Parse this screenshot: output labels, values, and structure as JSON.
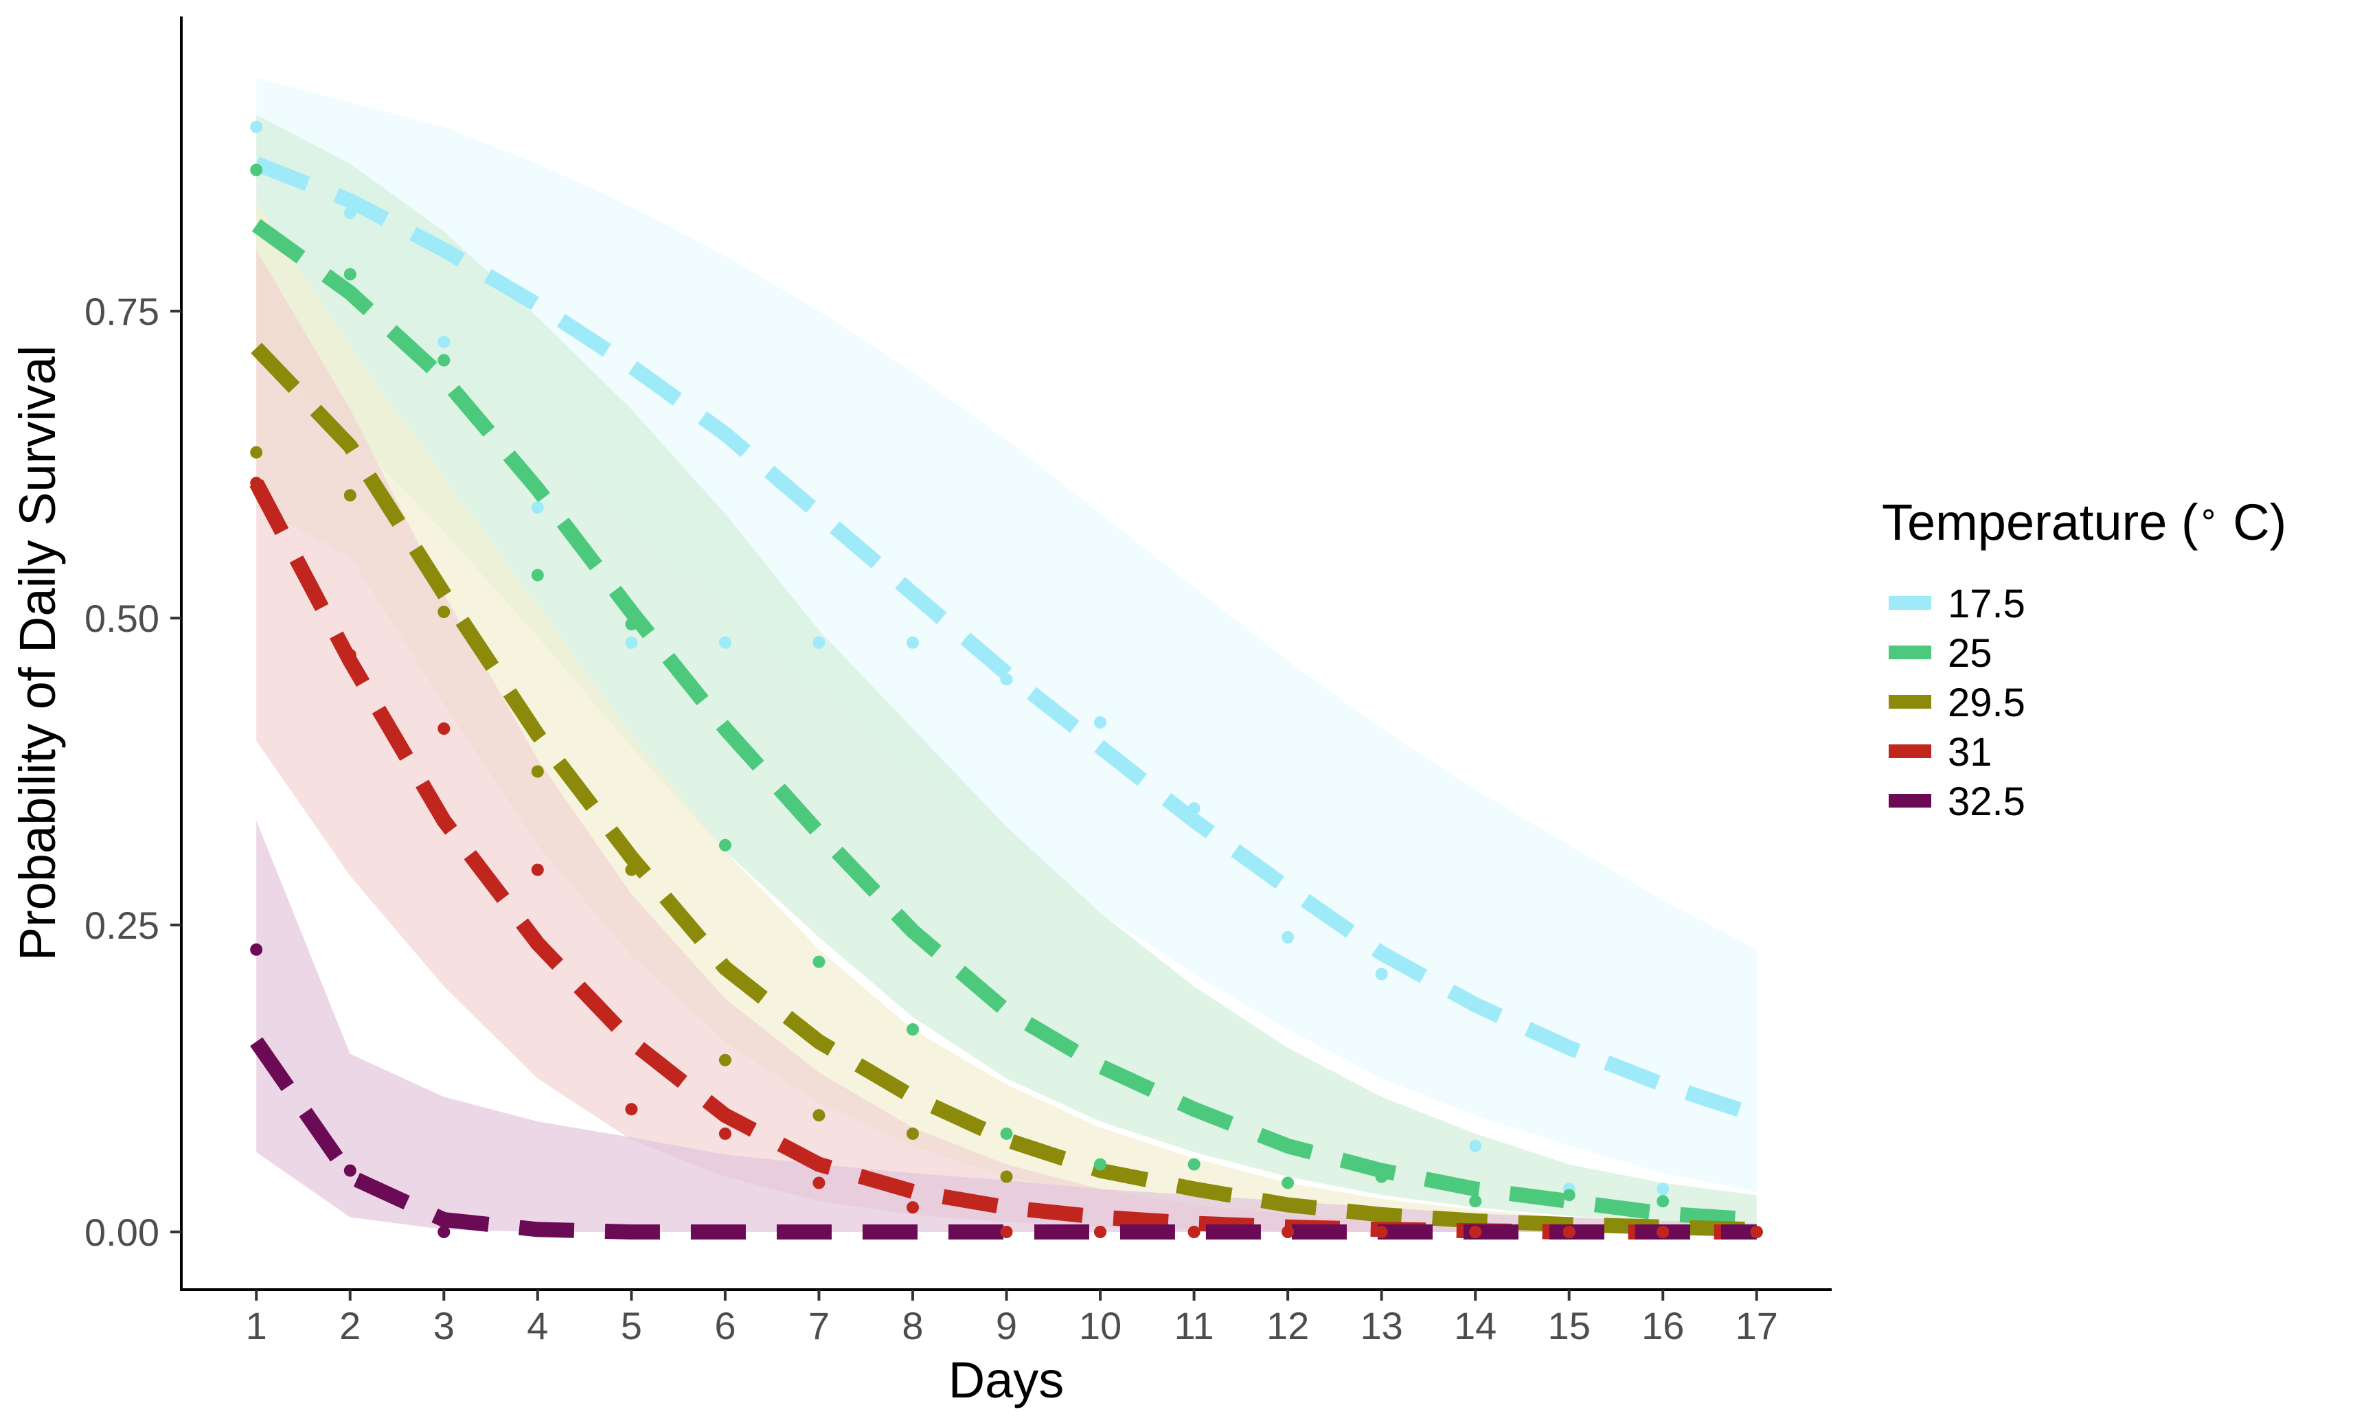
{
  "chart_data": {
    "type": "line",
    "xlabel": "Days",
    "ylabel": "Probability of Daily Survival",
    "x": [
      1,
      2,
      3,
      4,
      5,
      6,
      7,
      8,
      9,
      10,
      11,
      12,
      13,
      14,
      15,
      16,
      17
    ],
    "x_ticks": [
      "1",
      "2",
      "3",
      "4",
      "5",
      "6",
      "7",
      "8",
      "9",
      "10",
      "11",
      "12",
      "13",
      "14",
      "15",
      "16",
      "17"
    ],
    "xlim": [
      0.2,
      17.8
    ],
    "ylim": [
      -0.047,
      0.99
    ],
    "y_ticks": [
      0,
      0.25,
      0.5,
      0.75
    ],
    "y_tick_labels": [
      "0.00",
      "0.25",
      "0.50",
      "0.75"
    ],
    "grid": false,
    "legend": {
      "title_prefix": "Temperature (",
      "title_degree": "∘",
      "title_suffix": " C)",
      "position": "right"
    },
    "series": [
      {
        "name": "17.5",
        "color": "#9EEAF9",
        "ribbon_color": "#EAFBFE",
        "fitted": [
          0.87,
          0.84,
          0.8,
          0.755,
          0.705,
          0.65,
          0.585,
          0.52,
          0.455,
          0.395,
          0.335,
          0.28,
          0.227,
          0.185,
          0.15,
          0.12,
          0.095
        ],
        "lower": [
          0.8,
          0.76,
          0.7,
          0.64,
          0.575,
          0.505,
          0.44,
          0.375,
          0.315,
          0.26,
          0.21,
          0.165,
          0.125,
          0.095,
          0.07,
          0.048,
          0.033
        ],
        "upper": [
          0.94,
          0.92,
          0.9,
          0.87,
          0.835,
          0.795,
          0.75,
          0.7,
          0.645,
          0.585,
          0.525,
          0.465,
          0.41,
          0.36,
          0.315,
          0.27,
          0.23
        ],
        "observed": [
          0.9,
          0.83,
          0.725,
          0.59,
          0.48,
          0.48,
          0.48,
          0.48,
          0.45,
          0.415,
          0.345,
          0.24,
          0.21,
          0.07,
          0.035,
          0.035,
          0.0
        ]
      },
      {
        "name": "25",
        "color": "#4DC97E",
        "ribbon_color": "#D3F0DC",
        "fitted": [
          0.82,
          0.765,
          0.695,
          0.605,
          0.505,
          0.41,
          0.325,
          0.245,
          0.18,
          0.135,
          0.1,
          0.07,
          0.05,
          0.035,
          0.025,
          0.015,
          0.01
        ],
        "lower": [
          0.71,
          0.65,
          0.57,
          0.485,
          0.395,
          0.31,
          0.24,
          0.175,
          0.125,
          0.09,
          0.065,
          0.045,
          0.03,
          0.02,
          0.013,
          0.008,
          0.005
        ],
        "upper": [
          0.91,
          0.87,
          0.815,
          0.745,
          0.67,
          0.585,
          0.49,
          0.41,
          0.33,
          0.26,
          0.2,
          0.15,
          0.11,
          0.08,
          0.055,
          0.04,
          0.03
        ],
        "observed": [
          0.865,
          0.78,
          0.71,
          0.535,
          0.495,
          0.315,
          0.22,
          0.165,
          0.08,
          0.055,
          0.055,
          0.04,
          0.045,
          0.025,
          0.03,
          0.025,
          0.0
        ]
      },
      {
        "name": "29.5",
        "color": "#8C8A0B",
        "ribbon_color": "#F2F0D2",
        "fitted": [
          0.72,
          0.64,
          0.52,
          0.405,
          0.305,
          0.215,
          0.155,
          0.11,
          0.075,
          0.05,
          0.035,
          0.022,
          0.014,
          0.009,
          0.006,
          0.004,
          0.002
        ],
        "lower": [
          0.59,
          0.55,
          0.43,
          0.315,
          0.225,
          0.155,
          0.105,
          0.07,
          0.045,
          0.03,
          0.02,
          0.012,
          0.007,
          0.004,
          0.002,
          0.001,
          0.0
        ],
        "upper": [
          0.84,
          0.72,
          0.615,
          0.51,
          0.405,
          0.31,
          0.23,
          0.165,
          0.12,
          0.085,
          0.06,
          0.04,
          0.027,
          0.018,
          0.012,
          0.008,
          0.006
        ],
        "observed": [
          0.635,
          0.6,
          0.505,
          0.375,
          0.295,
          0.14,
          0.095,
          0.08,
          0.045,
          0.0,
          0.0,
          0.0,
          0.0,
          0.0,
          0.0,
          0.0,
          0.0
        ]
      },
      {
        "name": "31",
        "color": "#C0251E",
        "ribbon_color": "#F2D3D3",
        "fitted": [
          0.61,
          0.465,
          0.335,
          0.235,
          0.155,
          0.095,
          0.055,
          0.033,
          0.02,
          0.012,
          0.007,
          0.004,
          0.002,
          0.001,
          0.0,
          0.0,
          0.0
        ],
        "lower": [
          0.4,
          0.29,
          0.2,
          0.125,
          0.075,
          0.045,
          0.025,
          0.014,
          0.008,
          0.004,
          0.002,
          0.001,
          0.0,
          0.0,
          0.0,
          0.0,
          0.0
        ],
        "upper": [
          0.8,
          0.67,
          0.52,
          0.385,
          0.275,
          0.19,
          0.13,
          0.085,
          0.055,
          0.035,
          0.022,
          0.014,
          0.009,
          0.006,
          0.004,
          0.002,
          0.001
        ],
        "observed": [
          0.61,
          0.47,
          0.41,
          0.295,
          0.1,
          0.08,
          0.04,
          0.02,
          0.0,
          0.0,
          0.0,
          0.0,
          0.0,
          0.0,
          0.0,
          0.0,
          0.0
        ]
      },
      {
        "name": "32.5",
        "color": "#6B0A55",
        "ribbon_color": "#E3C6DC",
        "fitted": [
          0.155,
          0.045,
          0.01,
          0.002,
          0.0,
          0.0,
          0.0,
          0.0,
          0.0,
          0.0,
          0.0,
          0.0,
          0.0,
          0.0,
          0.0,
          0.0,
          0.0
        ],
        "lower": [
          0.065,
          0.012,
          0.002,
          0.0,
          0.0,
          0.0,
          0.0,
          0.0,
          0.0,
          0.0,
          0.0,
          0.0,
          0.0,
          0.0,
          0.0,
          0.0,
          0.0
        ],
        "upper": [
          0.335,
          0.145,
          0.11,
          0.09,
          0.077,
          0.063,
          0.055,
          0.048,
          0.042,
          0.035,
          0.03,
          0.025,
          0.02,
          0.015,
          0.012,
          0.009,
          0.007
        ],
        "observed": [
          0.23,
          0.05,
          0.0,
          null,
          null,
          null,
          null,
          null,
          null,
          null,
          null,
          null,
          null,
          null,
          null,
          null,
          null
        ]
      }
    ]
  }
}
